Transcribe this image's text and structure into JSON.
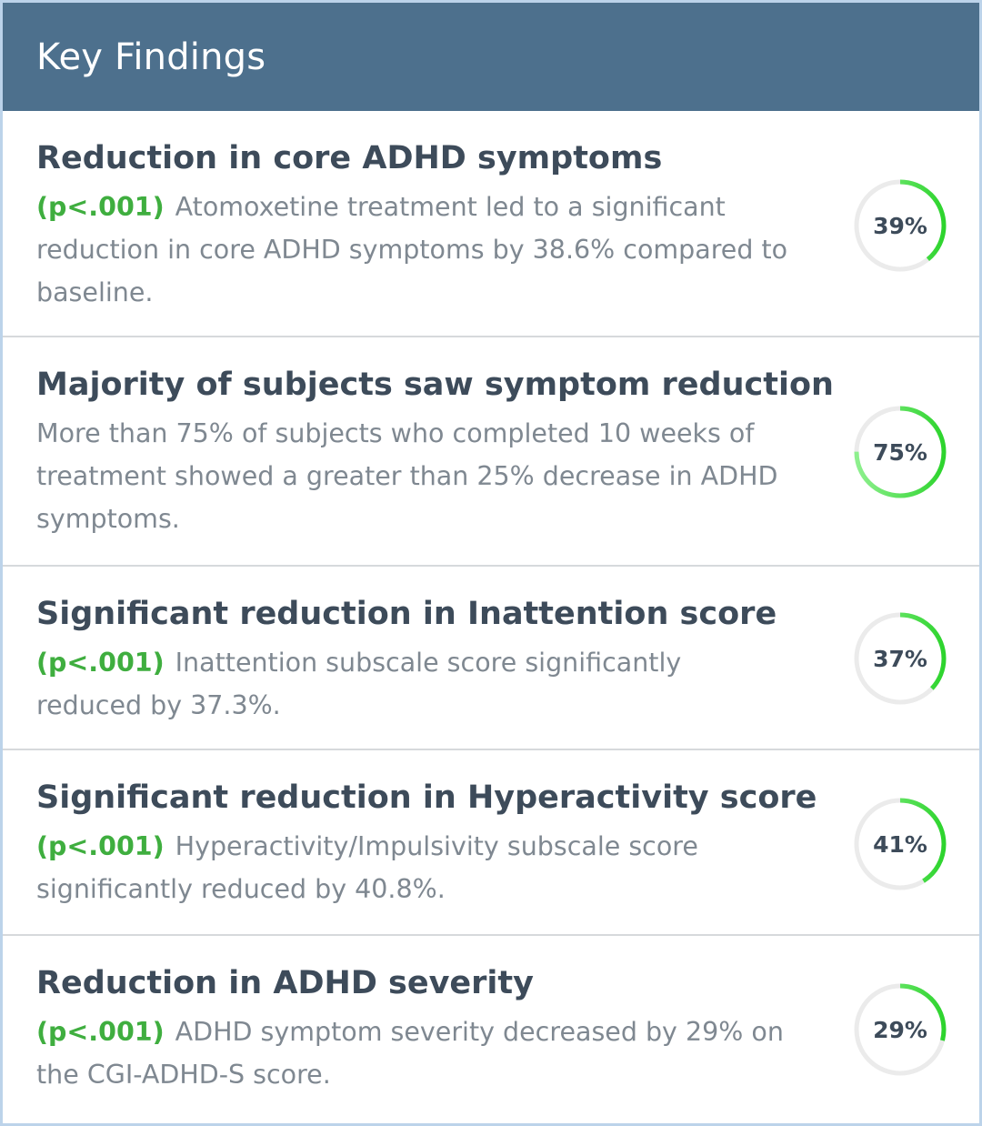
{
  "header": {
    "title": "Key Findings"
  },
  "colors": {
    "header_bg": "#4d708d",
    "ring_track": "#ebebeb",
    "ring_progress_start": "#8ef08e",
    "ring_progress_end": "#2dd42d",
    "pvalue_green": "#3fae3f"
  },
  "findings": [
    {
      "title": "Reduction in core ADHD symptoms",
      "pvalue": "(p<.001)",
      "description": "Atomoxetine treatment led to a significant reduction in core ADHD symptoms by 38.6% compared to baseline.",
      "percent_label": "39%",
      "percent_value": 39
    },
    {
      "title": "Majority of subjects saw symptom reduction",
      "pvalue": "",
      "description": "More than 75% of subjects who completed 10 weeks of treatment showed a greater than 25% decrease in ADHD symptoms.",
      "percent_label": "75%",
      "percent_value": 75
    },
    {
      "title": "Significant reduction in Inattention score",
      "pvalue": "(p<.001)",
      "description": "Inattention subscale score significantly reduced by 37.3%.",
      "percent_label": "37%",
      "percent_value": 37
    },
    {
      "title": "Significant reduction in Hyperactivity score",
      "pvalue": "(p<.001)",
      "description": "Hyperactivity/Impulsivity subscale score significantly reduced by 40.8%.",
      "percent_label": "41%",
      "percent_value": 41
    },
    {
      "title": "Reduction in ADHD severity",
      "pvalue": "(p<.001)",
      "description": "ADHD symptom severity decreased by 29% on the CGI-ADHD-S score.",
      "percent_label": "29%",
      "percent_value": 29
    }
  ]
}
